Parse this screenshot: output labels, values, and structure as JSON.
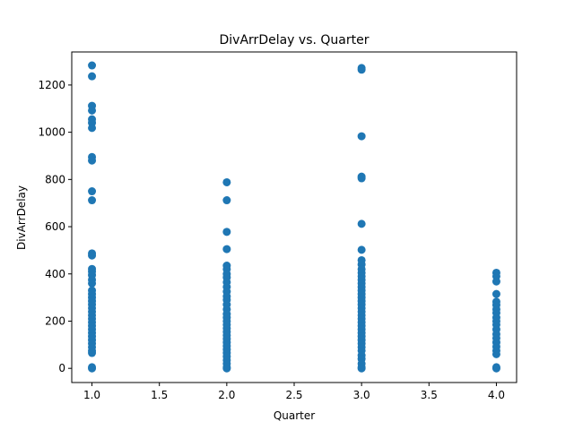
{
  "chart_data": {
    "type": "scatter",
    "title": "DivArrDelay vs. Quarter",
    "xlabel": "Quarter",
    "ylabel": "DivArrDelay",
    "xlim": [
      0.85,
      4.15
    ],
    "ylim": [
      -60,
      1340
    ],
    "xticks": [
      1.0,
      1.5,
      2.0,
      2.5,
      3.0,
      3.5,
      4.0
    ],
    "xtick_labels": [
      "1.0",
      "1.5",
      "2.0",
      "2.5",
      "3.0",
      "3.5",
      "4.0"
    ],
    "yticks": [
      0,
      200,
      400,
      600,
      800,
      1000,
      1200
    ],
    "ytick_labels": [
      "0",
      "200",
      "400",
      "600",
      "800",
      "1000",
      "1200"
    ],
    "grid": false,
    "marker_color": "#1f77b4",
    "points": [
      {
        "x": 1,
        "y": 1283
      },
      {
        "x": 1,
        "y": 1237
      },
      {
        "x": 1,
        "y": 1112
      },
      {
        "x": 1,
        "y": 1092
      },
      {
        "x": 1,
        "y": 1055
      },
      {
        "x": 1,
        "y": 1040
      },
      {
        "x": 1,
        "y": 1018
      },
      {
        "x": 1,
        "y": 895
      },
      {
        "x": 1,
        "y": 880
      },
      {
        "x": 1,
        "y": 750
      },
      {
        "x": 1,
        "y": 712
      },
      {
        "x": 1,
        "y": 487
      },
      {
        "x": 1,
        "y": 478
      },
      {
        "x": 1,
        "y": 421
      },
      {
        "x": 1,
        "y": 410
      },
      {
        "x": 1,
        "y": 395
      },
      {
        "x": 1,
        "y": 375
      },
      {
        "x": 1,
        "y": 360
      },
      {
        "x": 1,
        "y": 330
      },
      {
        "x": 1,
        "y": 315
      },
      {
        "x": 1,
        "y": 300
      },
      {
        "x": 1,
        "y": 285
      },
      {
        "x": 1,
        "y": 270
      },
      {
        "x": 1,
        "y": 255
      },
      {
        "x": 1,
        "y": 240
      },
      {
        "x": 1,
        "y": 225
      },
      {
        "x": 1,
        "y": 210
      },
      {
        "x": 1,
        "y": 195
      },
      {
        "x": 1,
        "y": 180
      },
      {
        "x": 1,
        "y": 165
      },
      {
        "x": 1,
        "y": 150
      },
      {
        "x": 1,
        "y": 135
      },
      {
        "x": 1,
        "y": 120
      },
      {
        "x": 1,
        "y": 105
      },
      {
        "x": 1,
        "y": 90
      },
      {
        "x": 1,
        "y": 75
      },
      {
        "x": 1,
        "y": 65
      },
      {
        "x": 1,
        "y": 5
      },
      {
        "x": 1,
        "y": 0
      },
      {
        "x": 2,
        "y": 788
      },
      {
        "x": 2,
        "y": 712
      },
      {
        "x": 2,
        "y": 578
      },
      {
        "x": 2,
        "y": 505
      },
      {
        "x": 2,
        "y": 435
      },
      {
        "x": 2,
        "y": 420
      },
      {
        "x": 2,
        "y": 400
      },
      {
        "x": 2,
        "y": 385
      },
      {
        "x": 2,
        "y": 365
      },
      {
        "x": 2,
        "y": 345
      },
      {
        "x": 2,
        "y": 325
      },
      {
        "x": 2,
        "y": 305
      },
      {
        "x": 2,
        "y": 290
      },
      {
        "x": 2,
        "y": 270
      },
      {
        "x": 2,
        "y": 250
      },
      {
        "x": 2,
        "y": 230
      },
      {
        "x": 2,
        "y": 215
      },
      {
        "x": 2,
        "y": 200
      },
      {
        "x": 2,
        "y": 185
      },
      {
        "x": 2,
        "y": 170
      },
      {
        "x": 2,
        "y": 155
      },
      {
        "x": 2,
        "y": 140
      },
      {
        "x": 2,
        "y": 125
      },
      {
        "x": 2,
        "y": 110
      },
      {
        "x": 2,
        "y": 95
      },
      {
        "x": 2,
        "y": 80
      },
      {
        "x": 2,
        "y": 65
      },
      {
        "x": 2,
        "y": 50
      },
      {
        "x": 2,
        "y": 35
      },
      {
        "x": 2,
        "y": 20
      },
      {
        "x": 2,
        "y": 5
      },
      {
        "x": 2,
        "y": 0
      },
      {
        "x": 3,
        "y": 1272
      },
      {
        "x": 3,
        "y": 1265
      },
      {
        "x": 3,
        "y": 983
      },
      {
        "x": 3,
        "y": 812
      },
      {
        "x": 3,
        "y": 805
      },
      {
        "x": 3,
        "y": 612
      },
      {
        "x": 3,
        "y": 502
      },
      {
        "x": 3,
        "y": 458
      },
      {
        "x": 3,
        "y": 440
      },
      {
        "x": 3,
        "y": 420
      },
      {
        "x": 3,
        "y": 405
      },
      {
        "x": 3,
        "y": 390
      },
      {
        "x": 3,
        "y": 375
      },
      {
        "x": 3,
        "y": 360
      },
      {
        "x": 3,
        "y": 345
      },
      {
        "x": 3,
        "y": 330
      },
      {
        "x": 3,
        "y": 315
      },
      {
        "x": 3,
        "y": 300
      },
      {
        "x": 3,
        "y": 285
      },
      {
        "x": 3,
        "y": 270
      },
      {
        "x": 3,
        "y": 255
      },
      {
        "x": 3,
        "y": 240
      },
      {
        "x": 3,
        "y": 225
      },
      {
        "x": 3,
        "y": 210
      },
      {
        "x": 3,
        "y": 195
      },
      {
        "x": 3,
        "y": 180
      },
      {
        "x": 3,
        "y": 165
      },
      {
        "x": 3,
        "y": 150
      },
      {
        "x": 3,
        "y": 135
      },
      {
        "x": 3,
        "y": 120
      },
      {
        "x": 3,
        "y": 105
      },
      {
        "x": 3,
        "y": 90
      },
      {
        "x": 3,
        "y": 75
      },
      {
        "x": 3,
        "y": 55
      },
      {
        "x": 3,
        "y": 40
      },
      {
        "x": 3,
        "y": 20
      },
      {
        "x": 3,
        "y": 5
      },
      {
        "x": 3,
        "y": 0
      },
      {
        "x": 4,
        "y": 405
      },
      {
        "x": 4,
        "y": 390
      },
      {
        "x": 4,
        "y": 368
      },
      {
        "x": 4,
        "y": 315
      },
      {
        "x": 4,
        "y": 282
      },
      {
        "x": 4,
        "y": 268
      },
      {
        "x": 4,
        "y": 250
      },
      {
        "x": 4,
        "y": 235
      },
      {
        "x": 4,
        "y": 215
      },
      {
        "x": 4,
        "y": 200
      },
      {
        "x": 4,
        "y": 185
      },
      {
        "x": 4,
        "y": 165
      },
      {
        "x": 4,
        "y": 145
      },
      {
        "x": 4,
        "y": 128
      },
      {
        "x": 4,
        "y": 110
      },
      {
        "x": 4,
        "y": 92
      },
      {
        "x": 4,
        "y": 75
      },
      {
        "x": 4,
        "y": 60
      },
      {
        "x": 4,
        "y": 5
      },
      {
        "x": 4,
        "y": 0
      }
    ]
  }
}
